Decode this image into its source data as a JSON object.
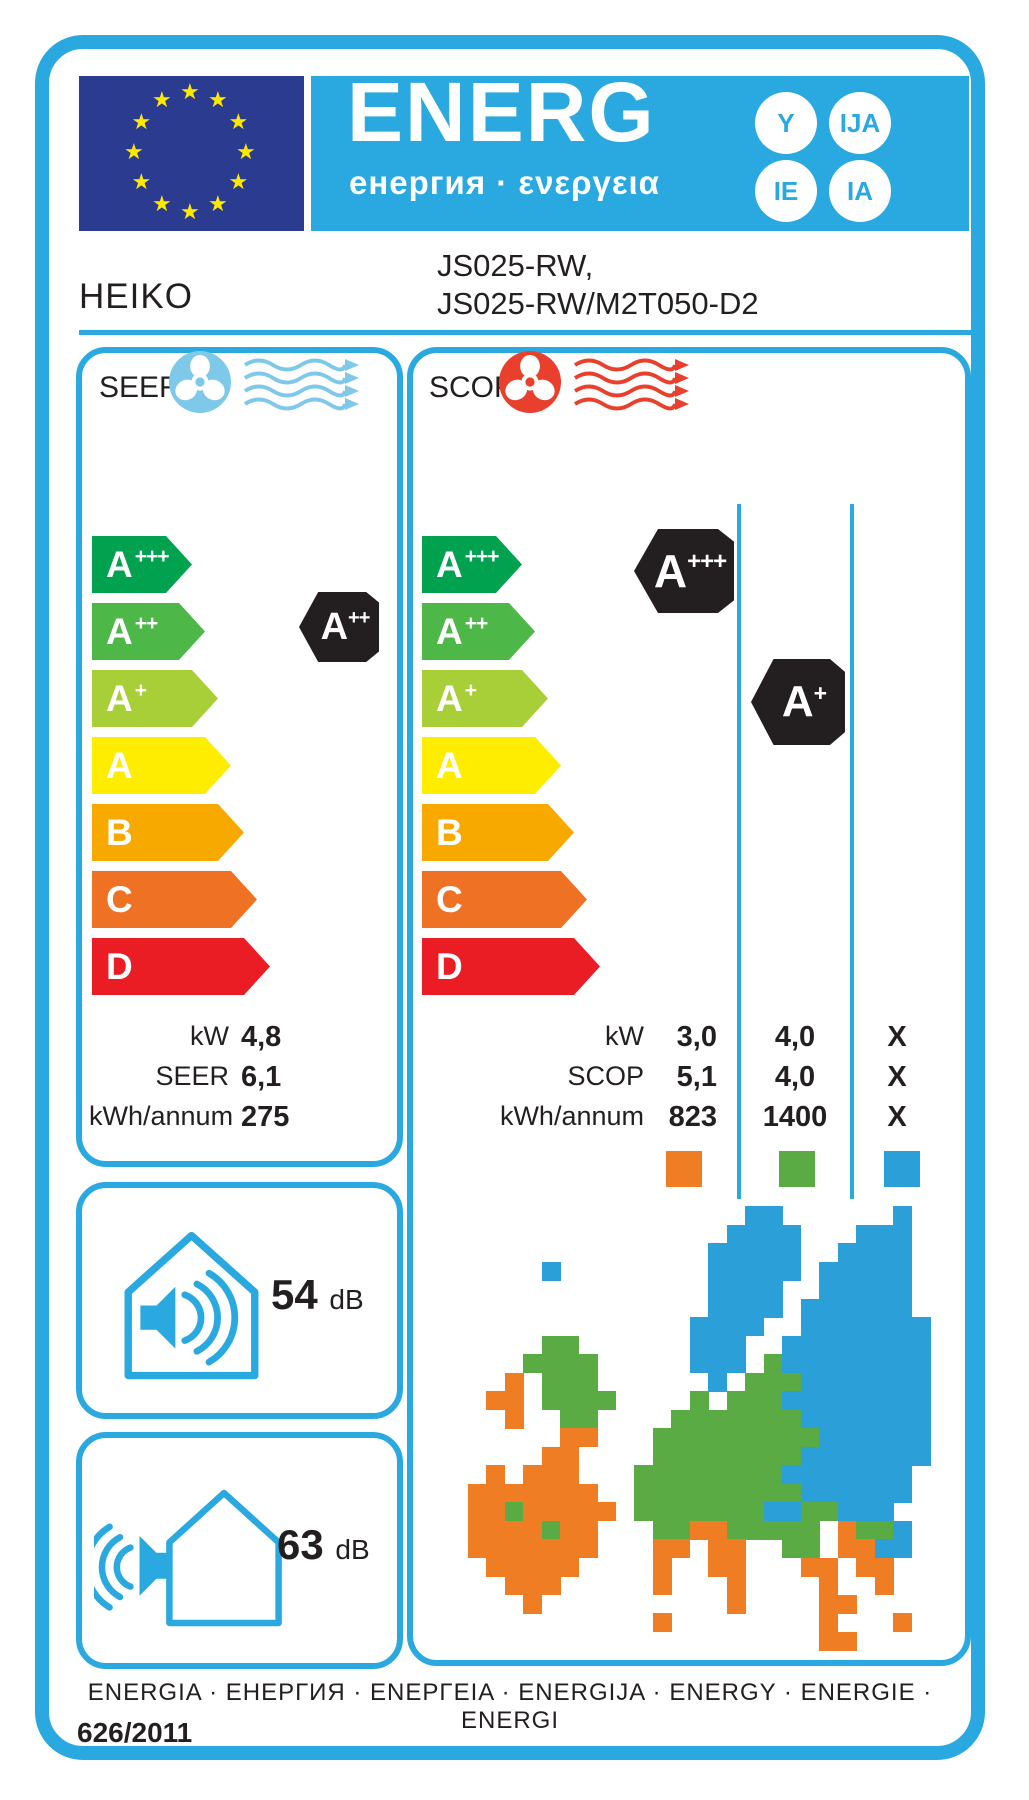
{
  "colors": {
    "accent": "#2aa9e0",
    "flag": "#2b3b90",
    "star": "#ffe800",
    "dark": "#231f20",
    "c0": "#00a24f",
    "c1": "#4db748",
    "c2": "#a8cf38",
    "c3": "#ffed00",
    "c4": "#f8a900",
    "c5": "#ef7123",
    "c6": "#ea1c24",
    "fanCool": "#7ec8ea",
    "fanHeat": "#e8402d",
    "mapB": "#2b9fd8",
    "mapG": "#5aab43",
    "mapO": "#ee7d23"
  },
  "header": {
    "energ": "ENERG",
    "subtitle": "енергия · ενεργεια",
    "circles": [
      "Y",
      "IJA",
      "IE",
      "IA"
    ]
  },
  "brand": "HEIKO",
  "model_line1": "JS025-RW,",
  "model_line2": "JS025-RW/M2T050-D2",
  "scale": [
    {
      "letter": "A",
      "sup": "+++"
    },
    {
      "letter": "A",
      "sup": "++"
    },
    {
      "letter": "A",
      "sup": "+"
    },
    {
      "letter": "A",
      "sup": ""
    },
    {
      "letter": "B",
      "sup": ""
    },
    {
      "letter": "C",
      "sup": ""
    },
    {
      "letter": "D",
      "sup": ""
    }
  ],
  "seer": {
    "title": "SEER",
    "rating": {
      "letter": "A",
      "sup": "++"
    },
    "rows": [
      {
        "label": "kW",
        "value": "4,8"
      },
      {
        "label": "SEER",
        "value": "6,1"
      },
      {
        "label": "kWh/annum",
        "value": "275"
      }
    ]
  },
  "scop": {
    "title": "SCOP",
    "rating_warmer": {
      "letter": "A",
      "sup": "+++"
    },
    "rating_average": {
      "letter": "A",
      "sup": "+"
    },
    "rows": [
      {
        "label": "kW",
        "v1": "3,0",
        "v2": "4,0",
        "v3": "X"
      },
      {
        "label": "SCOP",
        "v1": "5,1",
        "v2": "4,0",
        "v3": "X"
      },
      {
        "label": "kWh/annum",
        "v1": "823",
        "v2": "1400",
        "v3": "X"
      }
    ],
    "zone_colors": [
      "#ee7d23",
      "#5aab43",
      "#2b9fd8"
    ]
  },
  "noise": {
    "indoor_value": "54",
    "indoor_unit": "dB",
    "outdoor_value": "63",
    "outdoor_unit": "dB"
  },
  "footer": {
    "energia_line": "ENERGIA · ЕНЕРГИЯ · ΕΝΕΡΓΕΙΑ · ENERGIJA · ENERGY · ENERGIE · ENERGI",
    "regulation": "626/2011"
  },
  "map": {
    "cell": 18.5,
    "colors": {
      "B": "#2b9fd8",
      "G": "#5aab43",
      "O": "#ee7d23"
    },
    "grid": [
      "................BB......B...",
      "...............BBBB...BBB..",
      "..............BBBBB..BBBB..",
      ".....B........BBBBB.BBBBB..",
      "..............BBBB..BBBBB..",
      "..............BBBB.BBBBBB..",
      ".............BBBB..BBBBBBB.",
      ".....GG......BBB..BBBBBBBB.",
      "....GGGG.....BBB.GBBBBBBBB.",
      "...O.GGG......B.GGGBBBBBBB.",
      "..OO.GGGG....G.GGGBBBBBBBB.",
      "...O..GG....GGGGGGGBBBBBBB.",
      "......OO...GGGGGGGGGBBBBBB.",
      ".....OO....GGGGGGGGBBBBBBB.",
      "..O.OOO...GGGGGGGGBBBBBBB..",
      ".OOOOOOO..GGGGGGGGGBBBBBB..",
      ".OOGOOOOO.GGGGGGGBBGGBBB...",
      ".OOOOGOO...GGOOGGGGG.OGGB..",
      ".OOOOOOO...OO.OO..GG.OOBB..",
      "..OOOOO....O..OO...OO.OO...",
      "...OOO.....O...O....O..O...",
      "....O..........O....OO.....",
      "...........O........O...O..",
      "....................OO....."
    ]
  }
}
